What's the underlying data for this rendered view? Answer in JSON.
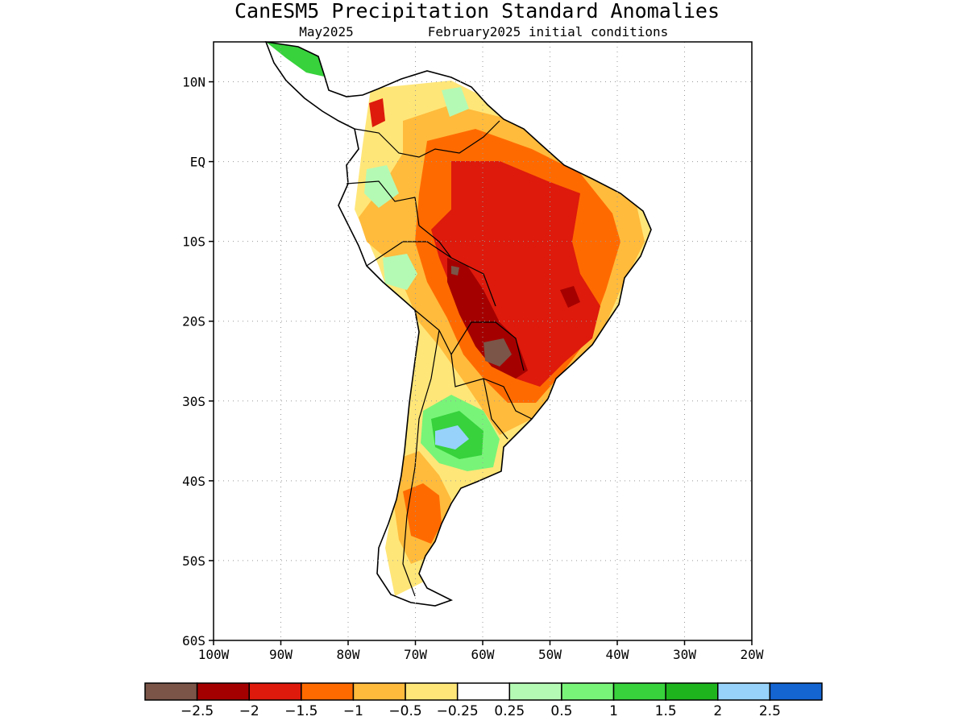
{
  "header": {
    "title": "CanESM5 Precipitation Standard Anomalies",
    "target_month": "May2025",
    "init_conditions": "February2025 initial conditions"
  },
  "map": {
    "lon_range": [
      -100,
      -20
    ],
    "lat_range": [
      -60,
      15
    ],
    "lat_ticks": [
      {
        "value": 10,
        "label": "10N"
      },
      {
        "value": 0,
        "label": "EQ"
      },
      {
        "value": -10,
        "label": "10S"
      },
      {
        "value": -20,
        "label": "20S"
      },
      {
        "value": -30,
        "label": "30S"
      },
      {
        "value": -40,
        "label": "40S"
      },
      {
        "value": -50,
        "label": "50S"
      },
      {
        "value": -60,
        "label": "60S"
      }
    ],
    "lon_ticks": [
      {
        "value": -100,
        "label": "100W"
      },
      {
        "value": -90,
        "label": "90W"
      },
      {
        "value": -80,
        "label": "80W"
      },
      {
        "value": -70,
        "label": "70W"
      },
      {
        "value": -60,
        "label": "60W"
      },
      {
        "value": -50,
        "label": "50W"
      },
      {
        "value": -40,
        "label": "40W"
      },
      {
        "value": -30,
        "label": "30W"
      },
      {
        "value": -20,
        "label": "20W"
      }
    ],
    "grid": true
  },
  "colorbar": {
    "colors": [
      "#7a5548",
      "#a50000",
      "#dd1a0c",
      "#ff6a00",
      "#ffbb3c",
      "#ffe678",
      "#ffffff",
      "#b4fab4",
      "#78f578",
      "#37d23c",
      "#1eb41e",
      "#96d2fa",
      "#1464d2"
    ],
    "labels": [
      "−2.5",
      "−2",
      "−1.5",
      "−1",
      "−0.5",
      "−0.25",
      "0.25",
      "0.5",
      "1",
      "1.5",
      "2",
      "2.5"
    ]
  }
}
